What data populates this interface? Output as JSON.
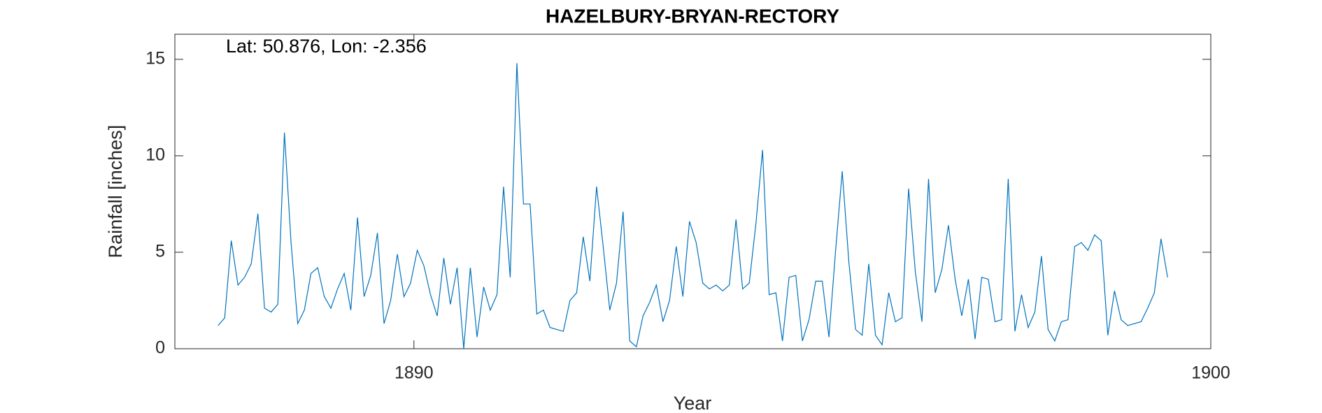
{
  "chart_data": {
    "type": "line",
    "title": "HAZELBURY-BRYAN-RECTORY",
    "annotation": "Lat: 50.876, Lon: -2.356",
    "xlabel": "Year",
    "ylabel": "Rainfall [inches]",
    "xlim": [
      1887,
      1900
    ],
    "xticks": [
      1890,
      1900
    ],
    "ylim": [
      0,
      16.3
    ],
    "yticks": [
      0,
      5,
      10,
      15
    ],
    "grid": false,
    "series": [
      {
        "name": "Rainfall",
        "color": "#0072bd",
        "x": [
          1887.542,
          1887.625,
          1887.708,
          1887.792,
          1887.875,
          1887.958,
          1888.042,
          1888.125,
          1888.208,
          1888.292,
          1888.375,
          1888.458,
          1888.542,
          1888.625,
          1888.708,
          1888.792,
          1888.875,
          1888.958,
          1889.042,
          1889.125,
          1889.208,
          1889.292,
          1889.375,
          1889.458,
          1889.542,
          1889.625,
          1889.708,
          1889.792,
          1889.875,
          1889.958,
          1890.042,
          1890.125,
          1890.208,
          1890.292,
          1890.375,
          1890.458,
          1890.542,
          1890.625,
          1890.708,
          1890.792,
          1890.875,
          1890.958,
          1891.042,
          1891.125,
          1891.208,
          1891.292,
          1891.375,
          1891.458,
          1891.542,
          1891.625,
          1891.708,
          1891.792,
          1891.875,
          1891.958,
          1892.042,
          1892.125,
          1892.208,
          1892.292,
          1892.375,
          1892.458,
          1892.542,
          1892.625,
          1892.708,
          1892.792,
          1892.875,
          1892.958,
          1893.042,
          1893.125,
          1893.208,
          1893.292,
          1893.375,
          1893.458,
          1893.542,
          1893.625,
          1893.708,
          1893.792,
          1893.875,
          1893.958,
          1894.042,
          1894.125,
          1894.208,
          1894.292,
          1894.375,
          1894.458,
          1894.542,
          1894.625,
          1894.708,
          1894.792,
          1894.875,
          1894.958,
          1895.042,
          1895.125,
          1895.208,
          1895.292,
          1895.375,
          1895.458,
          1895.542,
          1895.625,
          1895.708,
          1895.792,
          1895.875,
          1895.958,
          1896.042,
          1896.125,
          1896.208,
          1896.292,
          1896.375,
          1896.458,
          1896.542,
          1896.625,
          1896.708,
          1896.792,
          1896.875,
          1896.958,
          1897.042,
          1897.125,
          1897.208,
          1897.292,
          1897.375,
          1897.458,
          1897.542,
          1897.625,
          1897.708,
          1897.792,
          1897.875,
          1897.958,
          1898.042,
          1898.125,
          1898.208,
          1898.292,
          1898.375,
          1898.458,
          1898.542,
          1898.625,
          1898.708,
          1898.792,
          1898.875,
          1898.958,
          1899.042,
          1899.125,
          1899.208,
          1899.292,
          1899.375,
          1899.458
        ],
        "values": [
          1.2,
          1.6,
          5.6,
          3.3,
          3.7,
          4.4,
          7.0,
          2.1,
          1.9,
          2.3,
          11.2,
          5.5,
          1.3,
          2.0,
          3.9,
          4.2,
          2.7,
          2.1,
          3.1,
          3.9,
          2.0,
          6.8,
          2.7,
          3.8,
          6.0,
          1.3,
          2.5,
          4.9,
          2.7,
          3.4,
          5.1,
          4.3,
          2.8,
          1.7,
          4.7,
          2.3,
          4.2,
          0.0,
          4.2,
          0.6,
          3.2,
          2.0,
          2.8,
          8.4,
          3.7,
          14.8,
          7.5,
          7.5,
          1.8,
          2.0,
          1.1,
          1.0,
          0.9,
          2.5,
          2.9,
          5.8,
          3.5,
          8.4,
          5.3,
          2.0,
          3.4,
          7.1,
          0.4,
          0.1,
          1.7,
          2.4,
          3.3,
          1.4,
          2.5,
          5.3,
          2.7,
          6.6,
          5.5,
          3.4,
          3.1,
          3.3,
          3.0,
          3.3,
          6.7,
          3.1,
          3.4,
          6.5,
          10.3,
          2.8,
          2.9,
          0.4,
          3.7,
          3.8,
          0.4,
          1.5,
          3.5,
          3.5,
          0.6,
          5.1,
          9.2,
          4.5,
          1.0,
          0.7,
          4.4,
          0.7,
          0.2,
          2.9,
          1.4,
          1.6,
          8.3,
          4.0,
          1.4,
          8.8,
          2.9,
          4.1,
          6.4,
          3.6,
          1.7,
          3.6,
          0.5,
          3.7,
          3.6,
          1.4,
          1.5,
          8.8,
          0.9,
          2.8,
          1.1,
          1.9,
          4.8,
          1.0,
          0.4,
          1.4,
          1.5,
          5.3,
          5.5,
          5.1,
          5.9,
          5.6,
          0.7,
          3.0,
          1.5,
          1.2,
          1.3,
          1.4,
          2.1,
          2.9,
          5.7,
          3.7
        ]
      }
    ]
  }
}
